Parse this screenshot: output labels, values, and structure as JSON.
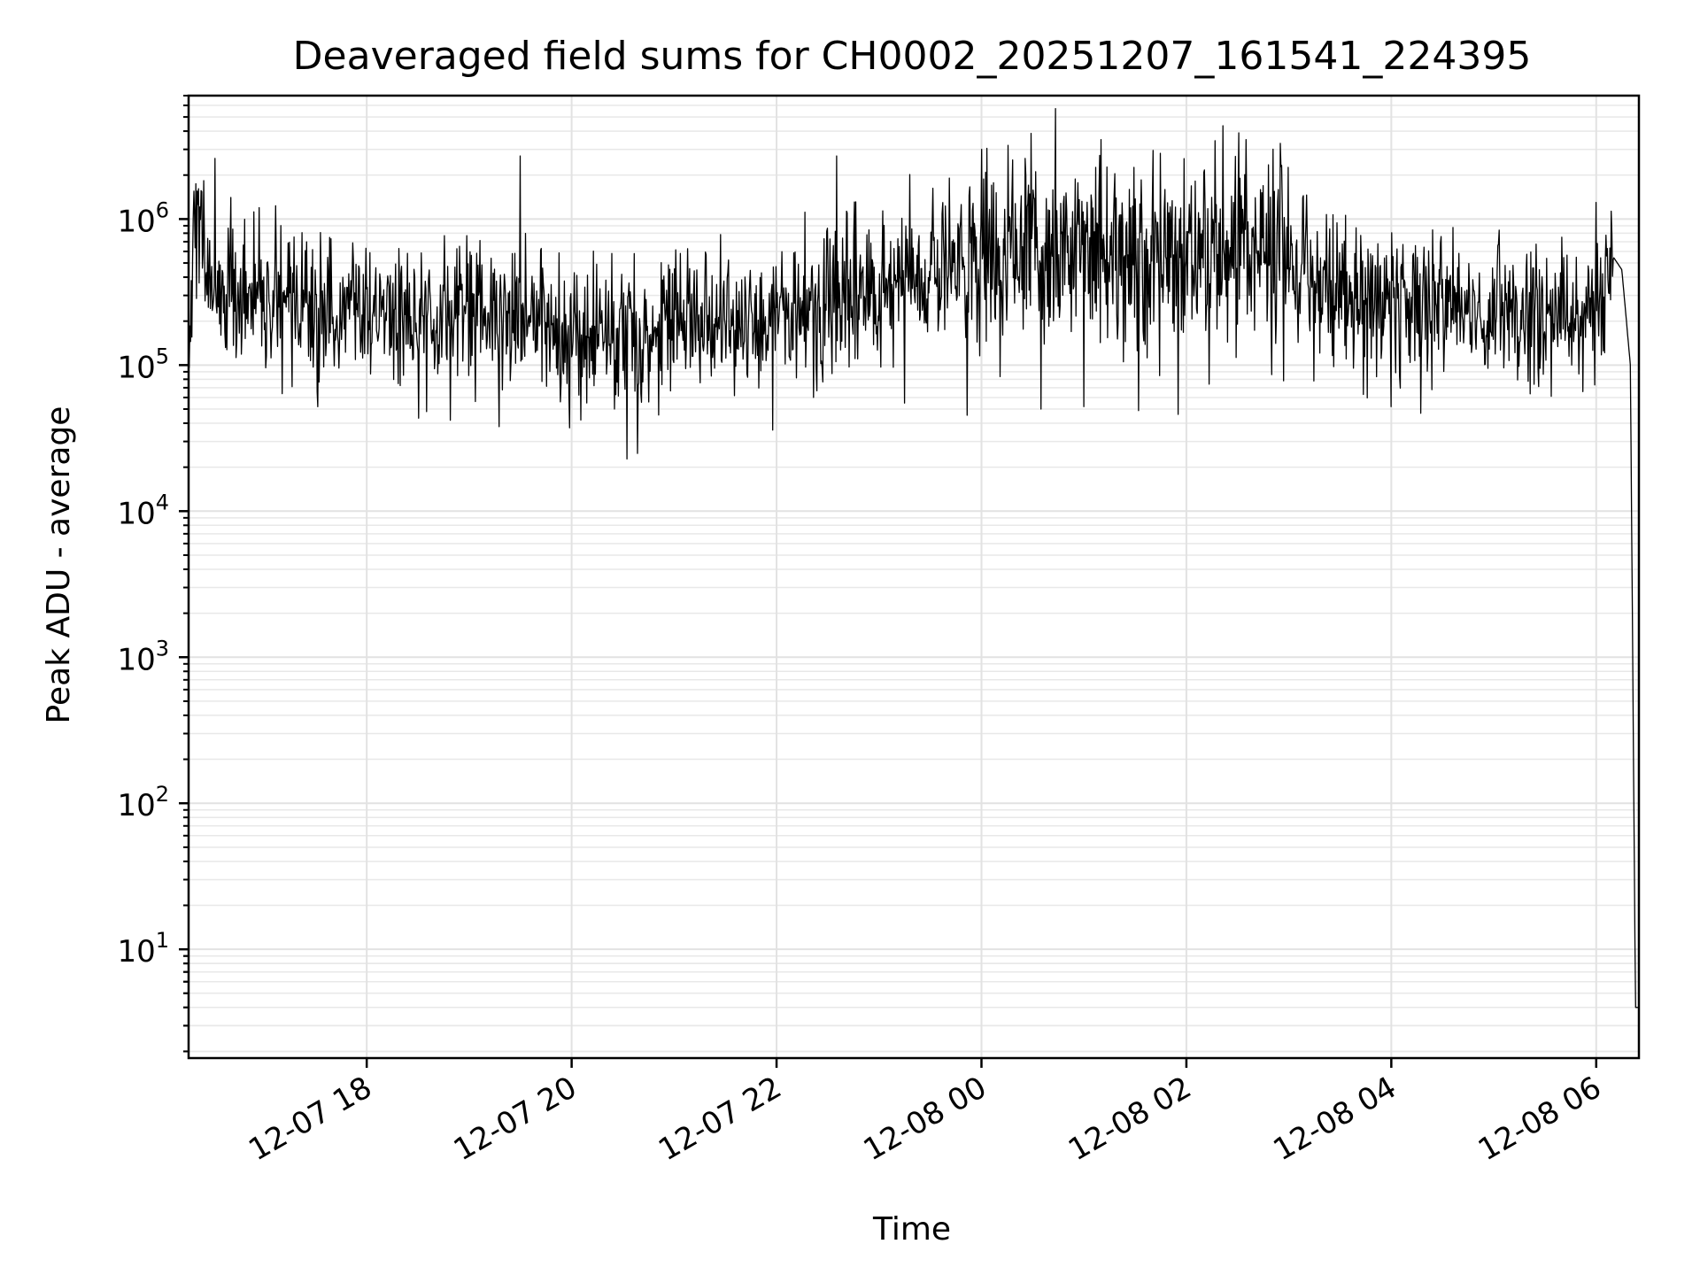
{
  "chart_data": {
    "type": "line",
    "title": "Deaveraged field sums for CH0002_20251207_161541_224395",
    "xlabel": "Time",
    "ylabel": "Peak ADU - average",
    "y_scale": "log",
    "ylim": [
      1.8,
      7000000
    ],
    "xlim": [
      "2025-12-07 16:15:41",
      "2025-12-08 06:25:00"
    ],
    "grid": true,
    "x_ticks": [
      "12-07 18",
      "12-07 20",
      "12-07 22",
      "12-08 00",
      "12-08 02",
      "12-08 04",
      "12-08 06"
    ],
    "y_ticks": [
      {
        "base": "10",
        "exp": "1",
        "value": 10
      },
      {
        "base": "10",
        "exp": "2",
        "value": 100
      },
      {
        "base": "10",
        "exp": "3",
        "value": 1000
      },
      {
        "base": "10",
        "exp": "4",
        "value": 10000
      },
      {
        "base": "10",
        "exp": "5",
        "value": 100000
      },
      {
        "base": "10",
        "exp": "6",
        "value": 1000000
      }
    ],
    "line_color": "#000000",
    "series": [
      {
        "x": [
          "2025-12-07 16:15:41",
          "2025-12-07 16:20",
          "2025-12-07 16:30",
          "2025-12-07 16:45",
          "2025-12-07 17:00",
          "2025-12-07 17:30",
          "2025-12-07 18:00",
          "2025-12-07 18:30",
          "2025-12-07 19:00",
          "2025-12-07 19:30",
          "2025-12-07 20:00",
          "2025-12-07 20:30",
          "2025-12-07 21:00",
          "2025-12-07 21:30",
          "2025-12-07 22:00",
          "2025-12-07 22:30",
          "2025-12-07 23:00",
          "2025-12-07 23:20",
          "2025-12-07 23:40",
          "2025-12-08 00:00",
          "2025-12-08 00:30",
          "2025-12-08 01:00",
          "2025-12-08 01:30",
          "2025-12-08 02:00",
          "2025-12-08 02:30",
          "2025-12-08 02:55",
          "2025-12-08 03:10",
          "2025-12-08 03:30",
          "2025-12-08 04:00",
          "2025-12-08 04:30",
          "2025-12-08 05:00",
          "2025-12-08 05:30",
          "2025-12-08 06:00",
          "2025-12-08 06:10",
          "2025-12-08 06:15",
          "2025-12-08 06:20",
          "2025-12-08 06:23",
          "2025-12-08 06:25"
        ],
        "y": [
          180000,
          1000000,
          300000,
          250000,
          260000,
          240000,
          230000,
          220000,
          210000,
          200000,
          180000,
          170000,
          200000,
          190000,
          200000,
          250000,
          320000,
          380000,
          500000,
          550000,
          500000,
          600000,
          550000,
          600000,
          650000,
          700000,
          400000,
          280000,
          260000,
          250000,
          230000,
          210000,
          220000,
          550000,
          450000,
          100000,
          4,
          4
        ]
      }
    ],
    "annotations": {
      "peaks": [
        {
          "x": "2025-12-07 16:31",
          "y": 2600000
        },
        {
          "x": "2025-12-07 19:30",
          "y": 2700000
        },
        {
          "x": "2025-12-07 22:35",
          "y": 2700000
        },
        {
          "x": "2025-12-08 00:00",
          "y": 3000000
        },
        {
          "x": "2025-12-08 01:10",
          "y": 3500000
        },
        {
          "x": "2025-12-08 02:35",
          "y": 3500000
        },
        {
          "x": "2025-12-08 02:55",
          "y": 3300000
        },
        {
          "x": "2025-12-08 06:00",
          "y": 1300000
        }
      ],
      "dips": [
        {
          "x": "2025-12-07 18:35",
          "y": 48000
        },
        {
          "x": "2025-12-07 20:25",
          "y": 50000
        },
        {
          "x": "2025-12-07 23:15",
          "y": 55000
        },
        {
          "x": "2025-12-08 00:35",
          "y": 50000
        },
        {
          "x": "2025-12-08 01:00",
          "y": 52000
        },
        {
          "x": "2025-12-08 01:55",
          "y": 46000
        },
        {
          "x": "2025-12-08 04:00",
          "y": 52000
        }
      ]
    }
  }
}
